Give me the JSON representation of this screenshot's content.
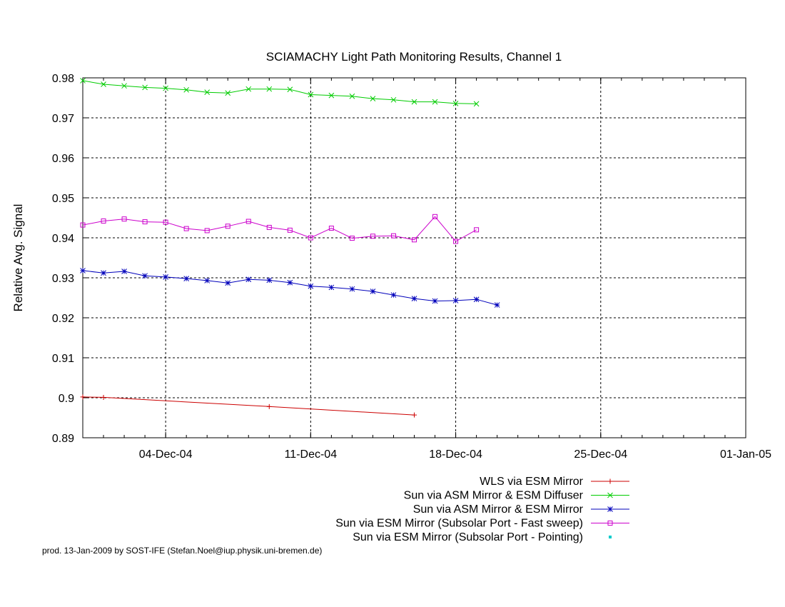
{
  "chart_data": {
    "type": "line",
    "title": "SCIAMACHY Light Path Monitoring Results, Channel 1",
    "ylabel": "Relative Avg. Signal",
    "xlabel": "",
    "x_axis": "date",
    "xlim": [
      "2004-11-30",
      "2005-01-01"
    ],
    "ylim": [
      0.89,
      0.98
    ],
    "y_ticks": [
      0.89,
      0.9,
      0.91,
      0.92,
      0.93,
      0.94,
      0.95,
      0.96,
      0.97,
      0.98
    ],
    "y_tick_labels": [
      "0.89",
      "0.9",
      "0.91",
      "0.92",
      "0.93",
      "0.94",
      "0.95",
      "0.96",
      "0.97",
      "0.98"
    ],
    "x_ticks": [
      "2004-12-04",
      "2004-12-11",
      "2004-12-18",
      "2004-12-25",
      "2005-01-01"
    ],
    "x_tick_labels": [
      "04-Dec-04",
      "11-Dec-04",
      "18-Dec-04",
      "25-Dec-04",
      "01-Jan-05"
    ],
    "grid": true,
    "legend_placement": "below",
    "series": [
      {
        "name": "WLS via ESM Mirror",
        "color": "#cc0000",
        "marker": "plus",
        "line": true,
        "x": [
          "2004-11-30",
          "2004-12-01",
          "2004-12-09",
          "2004-12-16"
        ],
        "y": [
          0.9002,
          0.9001,
          0.8978,
          0.8957
        ]
      },
      {
        "name": "Sun via ASM Mirror & ESM Diffuser",
        "color": "#00cc00",
        "marker": "cross",
        "line": true,
        "x": [
          "2004-11-30",
          "2004-12-01",
          "2004-12-02",
          "2004-12-03",
          "2004-12-04",
          "2004-12-05",
          "2004-12-06",
          "2004-12-07",
          "2004-12-08",
          "2004-12-09",
          "2004-12-10",
          "2004-12-11",
          "2004-12-12",
          "2004-12-13",
          "2004-12-14",
          "2004-12-15",
          "2004-12-16",
          "2004-12-17",
          "2004-12-18",
          "2004-12-19"
        ],
        "y": [
          0.9793,
          0.9784,
          0.978,
          0.9776,
          0.9774,
          0.977,
          0.9764,
          0.9762,
          0.9772,
          0.9772,
          0.9771,
          0.9758,
          0.9756,
          0.9754,
          0.9748,
          0.9745,
          0.974,
          0.974,
          0.9736,
          0.9735
        ]
      },
      {
        "name": "Sun via ASM Mirror & ESM Mirror",
        "color": "#0000bb",
        "marker": "star",
        "line": true,
        "x": [
          "2004-11-30",
          "2004-12-01",
          "2004-12-02",
          "2004-12-03",
          "2004-12-04",
          "2004-12-05",
          "2004-12-06",
          "2004-12-07",
          "2004-12-08",
          "2004-12-09",
          "2004-12-10",
          "2004-12-11",
          "2004-12-12",
          "2004-12-13",
          "2004-12-14",
          "2004-12-15",
          "2004-12-16",
          "2004-12-17",
          "2004-12-18",
          "2004-12-19",
          "2004-12-20"
        ],
        "y": [
          0.9318,
          0.9312,
          0.9316,
          0.9305,
          0.9302,
          0.9298,
          0.9293,
          0.9287,
          0.9296,
          0.9294,
          0.9288,
          0.9279,
          0.9276,
          0.9272,
          0.9266,
          0.9257,
          0.9248,
          0.9242,
          0.9243,
          0.9246,
          0.9232
        ]
      },
      {
        "name": "Sun via ESM Mirror (Subsolar Port - Fast sweep)",
        "color": "#cc00cc",
        "marker": "square",
        "line": true,
        "x": [
          "2004-11-30",
          "2004-12-01",
          "2004-12-02",
          "2004-12-03",
          "2004-12-04",
          "2004-12-05",
          "2004-12-06",
          "2004-12-07",
          "2004-12-08",
          "2004-12-09",
          "2004-12-10",
          "2004-12-11",
          "2004-12-12",
          "2004-12-13",
          "2004-12-14",
          "2004-12-15",
          "2004-12-16",
          "2004-12-17",
          "2004-12-18",
          "2004-12-19"
        ],
        "y": [
          0.9432,
          0.9442,
          0.9447,
          0.944,
          0.9439,
          0.9423,
          0.9418,
          0.9429,
          0.9441,
          0.9426,
          0.9419,
          0.94,
          0.9424,
          0.9399,
          0.9404,
          0.9405,
          0.9395,
          0.9453,
          0.9391,
          0.942
        ]
      },
      {
        "name": "Sun via ESM Mirror (Subsolar Port - Pointing)",
        "color": "#00cccc",
        "marker": "dot",
        "line": false,
        "x": [],
        "y": []
      }
    ]
  },
  "footer": "prod. 13-Jan-2009 by SOST-IFE (Stefan.Noel@iup.physik.uni-bremen.de)"
}
